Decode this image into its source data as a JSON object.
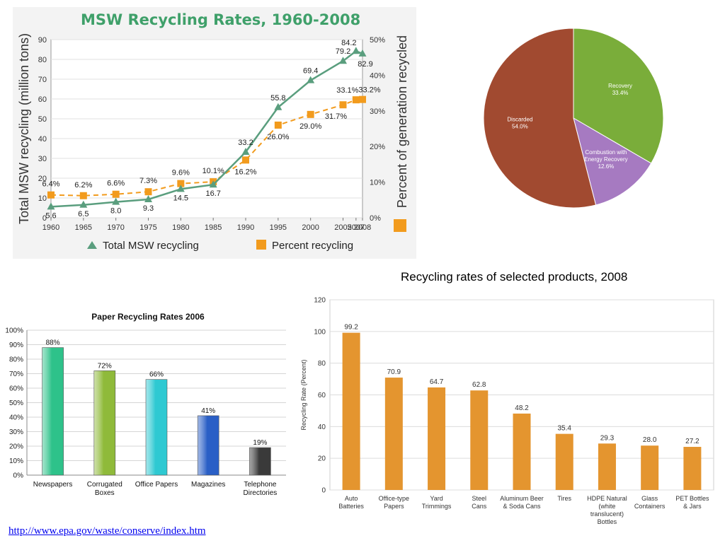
{
  "footer": {
    "source_link": "http://www.epa.gov/waste/conserve/index.htm"
  },
  "products_caption": "Recycling rates of selected products, 2008",
  "chart_data": [
    {
      "id": "msw",
      "type": "line",
      "title": "MSW Recycling Rates, 1960-2008",
      "ylabel": "Total MSW recycling (million tons)",
      "y2label": "Percent of generation recycled",
      "x": [
        1960,
        1965,
        1970,
        1975,
        1980,
        1985,
        1990,
        1995,
        2000,
        2005,
        2007,
        2008
      ],
      "xticks": [
        "1960",
        "1965",
        "1970",
        "1975",
        "1980",
        "1985",
        "1990",
        "1995",
        "2000",
        "2005",
        "2007",
        "2008"
      ],
      "ylim": [
        0,
        90
      ],
      "yticks": [
        "0",
        "10",
        "20",
        "30",
        "40",
        "50",
        "60",
        "70",
        "80",
        "90"
      ],
      "y2lim": [
        0,
        50
      ],
      "y2ticks": [
        "0%",
        "10%",
        "20%",
        "30%",
        "40%",
        "50%"
      ],
      "grid": true,
      "legend_position": "bottom",
      "series": [
        {
          "name": "Total MSW recycling",
          "axis": "left",
          "color": "#5a9e7e",
          "values": [
            5.6,
            6.5,
            8.0,
            9.3,
            14.5,
            16.7,
            33.2,
            55.8,
            69.4,
            79.2,
            84.2,
            82.9
          ],
          "labels": [
            "5.6",
            "6.5",
            "8.0",
            "9.3",
            "14.5",
            "16.7",
            "33.2",
            "55.8",
            "69.4",
            "79.2",
            "84.2",
            "82.9"
          ]
        },
        {
          "name": "Percent recycling",
          "axis": "right",
          "color": "#f29b1d",
          "values": [
            6.4,
            6.2,
            6.6,
            7.3,
            9.6,
            10.1,
            16.2,
            26.0,
            29.0,
            31.7,
            33.1,
            33.2
          ],
          "labels": [
            "6.4%",
            "6.2%",
            "6.6%",
            "7.3%",
            "9.6%",
            "10.1%",
            "16.2%",
            "26.0%",
            "29.0%",
            "31.7%",
            "33.1%",
            "33.2%"
          ]
        }
      ]
    },
    {
      "id": "pie",
      "type": "pie",
      "slices": [
        {
          "label": "Recovery",
          "value": 33.4,
          "display": "33.4%",
          "color": "#7aad3a"
        },
        {
          "label": "Combustion with Energy Recovery",
          "value": 12.6,
          "display": "12.6%",
          "color": "#a67ac1"
        },
        {
          "label": "Discarded",
          "value": 54.0,
          "display": "54.0%",
          "color": "#a14a30"
        }
      ]
    },
    {
      "id": "paper",
      "type": "bar",
      "title": "Paper Recycling Rates 2006",
      "categories": [
        "Newspapers",
        "Corrugated Boxes",
        "Office Papers",
        "Magazines",
        "Telephone Directories"
      ],
      "values": [
        88,
        72,
        66,
        41,
        19
      ],
      "labels": [
        "88%",
        "72%",
        "66%",
        "41%",
        "19%"
      ],
      "colors": [
        "#2ec28a",
        "#8fba3a",
        "#2ec9d2",
        "#2a5fc6",
        "#3a3a3a"
      ],
      "ylim": [
        0,
        100
      ],
      "yticks": [
        "0%",
        "10%",
        "20%",
        "30%",
        "40%",
        "50%",
        "60%",
        "70%",
        "80%",
        "90%",
        "100%"
      ],
      "grid": true
    },
    {
      "id": "products",
      "type": "bar",
      "ylabel": "Recycling Rate (Percent)",
      "categories": [
        "Auto Batteries",
        "Office-type Papers",
        "Yard Trimmings",
        "Steel Cans",
        "Aluminum Beer & Soda Cans",
        "Tires",
        "HDPE Natural (white translucent) Bottles",
        "Glass Containers",
        "PET Bottles & Jars"
      ],
      "values": [
        99.2,
        70.9,
        64.7,
        62.8,
        48.2,
        35.4,
        29.3,
        28.0,
        27.2
      ],
      "labels": [
        "99.2",
        "70.9",
        "64.7",
        "62.8",
        "48.2",
        "35.4",
        "29.3",
        "28.0",
        "27.2"
      ],
      "color": "#e4952f",
      "ylim": [
        0,
        120
      ],
      "yticks": [
        "0",
        "20",
        "40",
        "60",
        "80",
        "100",
        "120"
      ],
      "grid": true
    }
  ]
}
